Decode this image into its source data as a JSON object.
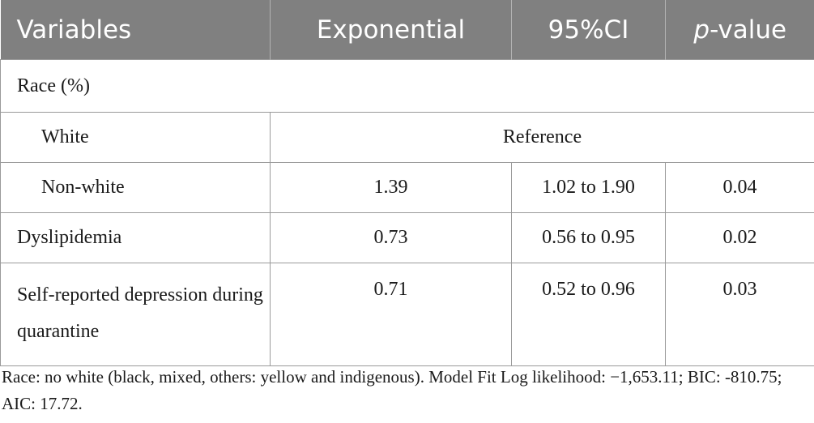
{
  "header": {
    "variables": "Variables",
    "exponential": "Exponential",
    "ci": "95%CI",
    "p_italic": "p",
    "p_suffix": "-value"
  },
  "rows": {
    "race": {
      "label": "Race (%)"
    },
    "white": {
      "label": "White",
      "reference": "Reference"
    },
    "nonwhite": {
      "label": "Non-white",
      "exp": "1.39",
      "ci": "1.02 to 1.90",
      "p": "0.04"
    },
    "dyslipidemia": {
      "label": "Dyslipidemia",
      "exp": "0.73",
      "ci": "0.56 to 0.95",
      "p": "0.02"
    },
    "depression": {
      "label": "Self-reported depression during quarantine",
      "exp": "0.71",
      "ci": "0.52 to 0.96",
      "p": "0.03"
    }
  },
  "footnote": "Race: no white (black, mixed, others: yellow and indigenous). Model Fit Log likelihood: −1,653.11; BIC: -810.75; AIC: 17.72.",
  "colors": {
    "header_bg": "#808080",
    "header_text": "#ffffff",
    "border": "#9a9a9a"
  }
}
